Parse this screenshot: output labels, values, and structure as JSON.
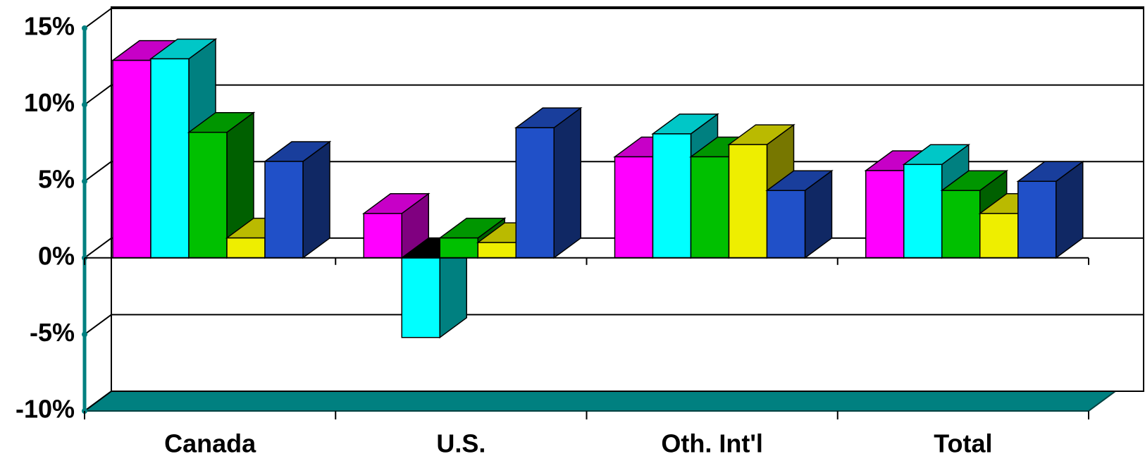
{
  "chart_data": {
    "type": "bar3d",
    "categories": [
      "Canada",
      "U.S.",
      "Oth. Int'l",
      "Total"
    ],
    "series": [
      {
        "color": "#ff00ff",
        "values": [
          12.9,
          2.9,
          6.6,
          5.7
        ]
      },
      {
        "color": "#00ffff",
        "values": [
          13.0,
          -5.2,
          8.1,
          6.1
        ]
      },
      {
        "color": "#00c000",
        "values": [
          8.2,
          1.3,
          6.6,
          4.4
        ]
      },
      {
        "color": "#eeee00",
        "values": [
          1.3,
          1.0,
          7.4,
          2.9
        ]
      },
      {
        "color": "#2050c8",
        "values": [
          6.3,
          8.5,
          4.4,
          5.0
        ]
      }
    ],
    "ylim": [
      -10,
      15
    ],
    "yticks": [
      {
        "value": -10,
        "label": "-10%"
      },
      {
        "value": -5,
        "label": "-5%"
      },
      {
        "value": 0,
        "label": "0%"
      },
      {
        "value": 5,
        "label": "5%"
      },
      {
        "value": 10,
        "label": "10%"
      },
      {
        "value": 15,
        "label": "15%"
      }
    ],
    "grid": true,
    "floor_color": "#008080"
  }
}
